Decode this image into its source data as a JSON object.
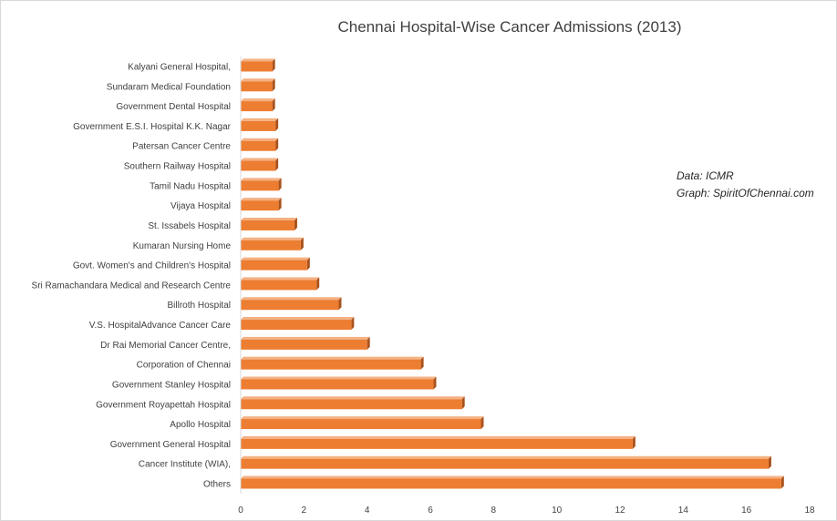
{
  "chart_data": {
    "type": "bar",
    "orientation": "horizontal",
    "title": "Chennai Hospital-Wise Cancer Admissions (2013)",
    "xlabel": "",
    "ylabel": "",
    "xlim": [
      0,
      18
    ],
    "x_ticks": [
      "0",
      "2",
      "4",
      "6",
      "8",
      "10",
      "12",
      "14",
      "16",
      "18"
    ],
    "grid": false,
    "bar_color": "#ED7D31",
    "categories": [
      "Kalyani General Hospital,",
      "Sundaram Medical Foundation",
      "Government Dental Hospital",
      "Government E.S.I. Hospital K.K. Nagar",
      "Patersan Cancer Centre",
      "Southern Railway Hospital",
      "Tamil Nadu Hospital",
      "Vijaya Hospital",
      "St. Issabels Hospital",
      "Kumaran Nursing Home",
      "Govt. Women's and Children's Hospital",
      "Sri Ramachandara Medical and Research Centre",
      "Billroth Hospital",
      "V.S. HospitalAdvance Cancer Care",
      "Dr Rai Memorial Cancer Centre,",
      "Corporation of Chennai",
      "Government Stanley Hospital",
      "Government Royapettah Hospital",
      "Apollo Hospital",
      "Government General Hospital",
      "Cancer Institute (WIA),",
      "Others"
    ],
    "values": [
      1.0,
      1.0,
      1.0,
      1.1,
      1.1,
      1.1,
      1.2,
      1.2,
      1.7,
      1.9,
      2.1,
      2.4,
      3.1,
      3.5,
      4.0,
      5.7,
      6.1,
      7.0,
      7.6,
      12.4,
      16.7,
      17.1
    ]
  },
  "source_note": {
    "line1": "Data: ICMR",
    "line2": "Graph: SpiritOfChennai.com"
  }
}
